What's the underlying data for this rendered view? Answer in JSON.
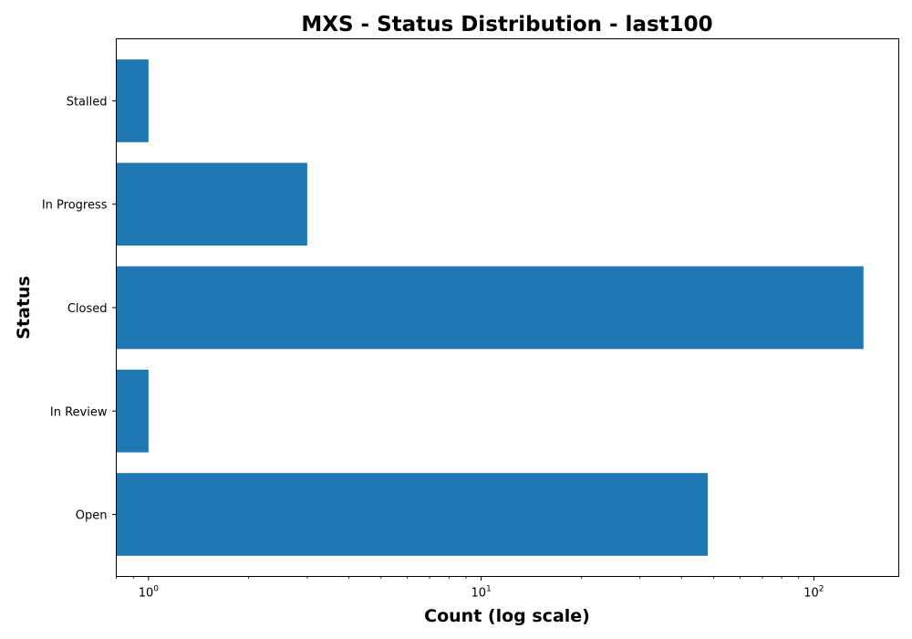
{
  "chart_data": {
    "type": "bar",
    "orientation": "horizontal",
    "title": "MXS - Status Distribution - last100",
    "xlabel": "Count (log scale)",
    "ylabel": "Status",
    "x_scale": "log",
    "xlim": [
      0.8,
      180
    ],
    "x_ticks": [
      {
        "value": 1,
        "base": "10",
        "exp": "0"
      },
      {
        "value": 10,
        "base": "10",
        "exp": "1"
      },
      {
        "value": 100,
        "base": "10",
        "exp": "2"
      }
    ],
    "categories": [
      "Open",
      "In Review",
      "Closed",
      "In Progress",
      "Stalled"
    ],
    "values": [
      48,
      1,
      141,
      3,
      1
    ],
    "bar_color": "#1f77b4",
    "grid": false,
    "legend": "none"
  }
}
